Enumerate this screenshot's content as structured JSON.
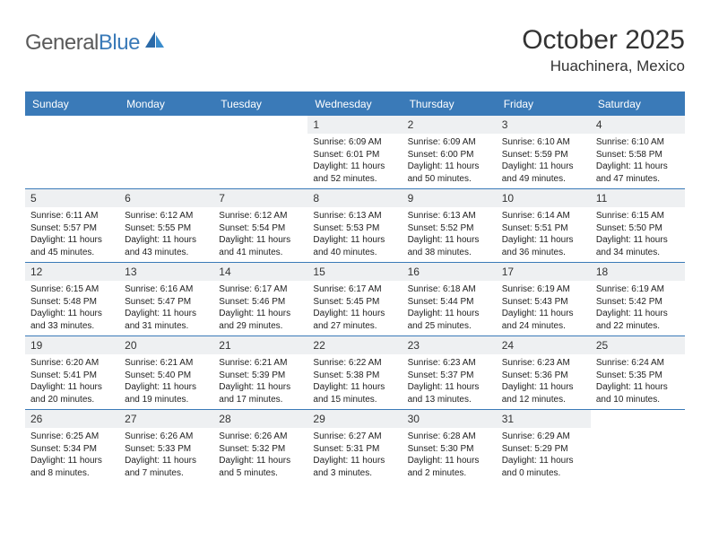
{
  "brand": {
    "general": "General",
    "blue": "Blue"
  },
  "title": "October 2025",
  "location": "Huachinera, Mexico",
  "colors": {
    "header_bg": "#3a7ab8",
    "daynum_bg": "#eef0f2",
    "border": "#3a7ab8",
    "text": "#222222",
    "logo_gray": "#5a5a5a",
    "logo_blue": "#3a7ab8",
    "page_bg": "#ffffff"
  },
  "typography": {
    "title_fontsize": 30,
    "location_fontsize": 17,
    "dayheader_fontsize": 12,
    "daynum_fontsize": 12,
    "body_fontsize": 10
  },
  "calendar": {
    "day_headers": [
      "Sunday",
      "Monday",
      "Tuesday",
      "Wednesday",
      "Thursday",
      "Friday",
      "Saturday"
    ],
    "weeks": [
      [
        null,
        null,
        null,
        {
          "n": "1",
          "sunrise": "6:09 AM",
          "sunset": "6:01 PM",
          "day_h": "11",
          "day_m": "52"
        },
        {
          "n": "2",
          "sunrise": "6:09 AM",
          "sunset": "6:00 PM",
          "day_h": "11",
          "day_m": "50"
        },
        {
          "n": "3",
          "sunrise": "6:10 AM",
          "sunset": "5:59 PM",
          "day_h": "11",
          "day_m": "49"
        },
        {
          "n": "4",
          "sunrise": "6:10 AM",
          "sunset": "5:58 PM",
          "day_h": "11",
          "day_m": "47"
        }
      ],
      [
        {
          "n": "5",
          "sunrise": "6:11 AM",
          "sunset": "5:57 PM",
          "day_h": "11",
          "day_m": "45"
        },
        {
          "n": "6",
          "sunrise": "6:12 AM",
          "sunset": "5:55 PM",
          "day_h": "11",
          "day_m": "43"
        },
        {
          "n": "7",
          "sunrise": "6:12 AM",
          "sunset": "5:54 PM",
          "day_h": "11",
          "day_m": "41"
        },
        {
          "n": "8",
          "sunrise": "6:13 AM",
          "sunset": "5:53 PM",
          "day_h": "11",
          "day_m": "40"
        },
        {
          "n": "9",
          "sunrise": "6:13 AM",
          "sunset": "5:52 PM",
          "day_h": "11",
          "day_m": "38"
        },
        {
          "n": "10",
          "sunrise": "6:14 AM",
          "sunset": "5:51 PM",
          "day_h": "11",
          "day_m": "36"
        },
        {
          "n": "11",
          "sunrise": "6:15 AM",
          "sunset": "5:50 PM",
          "day_h": "11",
          "day_m": "34"
        }
      ],
      [
        {
          "n": "12",
          "sunrise": "6:15 AM",
          "sunset": "5:48 PM",
          "day_h": "11",
          "day_m": "33"
        },
        {
          "n": "13",
          "sunrise": "6:16 AM",
          "sunset": "5:47 PM",
          "day_h": "11",
          "day_m": "31"
        },
        {
          "n": "14",
          "sunrise": "6:17 AM",
          "sunset": "5:46 PM",
          "day_h": "11",
          "day_m": "29"
        },
        {
          "n": "15",
          "sunrise": "6:17 AM",
          "sunset": "5:45 PM",
          "day_h": "11",
          "day_m": "27"
        },
        {
          "n": "16",
          "sunrise": "6:18 AM",
          "sunset": "5:44 PM",
          "day_h": "11",
          "day_m": "25"
        },
        {
          "n": "17",
          "sunrise": "6:19 AM",
          "sunset": "5:43 PM",
          "day_h": "11",
          "day_m": "24"
        },
        {
          "n": "18",
          "sunrise": "6:19 AM",
          "sunset": "5:42 PM",
          "day_h": "11",
          "day_m": "22"
        }
      ],
      [
        {
          "n": "19",
          "sunrise": "6:20 AM",
          "sunset": "5:41 PM",
          "day_h": "11",
          "day_m": "20"
        },
        {
          "n": "20",
          "sunrise": "6:21 AM",
          "sunset": "5:40 PM",
          "day_h": "11",
          "day_m": "19"
        },
        {
          "n": "21",
          "sunrise": "6:21 AM",
          "sunset": "5:39 PM",
          "day_h": "11",
          "day_m": "17"
        },
        {
          "n": "22",
          "sunrise": "6:22 AM",
          "sunset": "5:38 PM",
          "day_h": "11",
          "day_m": "15"
        },
        {
          "n": "23",
          "sunrise": "6:23 AM",
          "sunset": "5:37 PM",
          "day_h": "11",
          "day_m": "13"
        },
        {
          "n": "24",
          "sunrise": "6:23 AM",
          "sunset": "5:36 PM",
          "day_h": "11",
          "day_m": "12"
        },
        {
          "n": "25",
          "sunrise": "6:24 AM",
          "sunset": "5:35 PM",
          "day_h": "11",
          "day_m": "10"
        }
      ],
      [
        {
          "n": "26",
          "sunrise": "6:25 AM",
          "sunset": "5:34 PM",
          "day_h": "11",
          "day_m": "8"
        },
        {
          "n": "27",
          "sunrise": "6:26 AM",
          "sunset": "5:33 PM",
          "day_h": "11",
          "day_m": "7"
        },
        {
          "n": "28",
          "sunrise": "6:26 AM",
          "sunset": "5:32 PM",
          "day_h": "11",
          "day_m": "5"
        },
        {
          "n": "29",
          "sunrise": "6:27 AM",
          "sunset": "5:31 PM",
          "day_h": "11",
          "day_m": "3"
        },
        {
          "n": "30",
          "sunrise": "6:28 AM",
          "sunset": "5:30 PM",
          "day_h": "11",
          "day_m": "2"
        },
        {
          "n": "31",
          "sunrise": "6:29 AM",
          "sunset": "5:29 PM",
          "day_h": "11",
          "day_m": "0"
        },
        null
      ]
    ]
  }
}
